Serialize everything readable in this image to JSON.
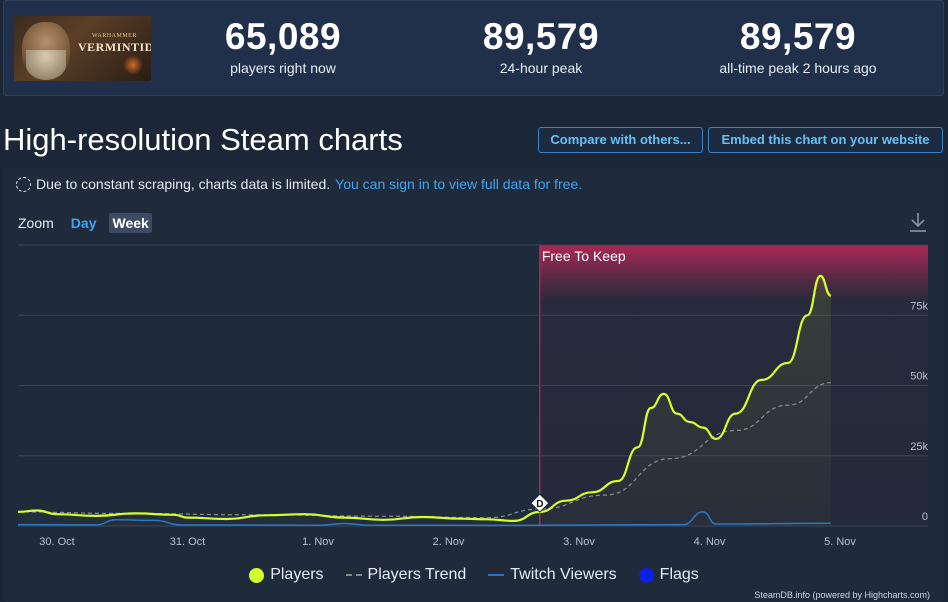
{
  "game": {
    "logo_small": "WARHAMMER",
    "logo": "VERMINTIDE"
  },
  "stats": [
    {
      "value": "65,089",
      "label": "players right now"
    },
    {
      "value": "89,579",
      "label": "24-hour peak"
    },
    {
      "value": "89,579",
      "label": "all-time peak 2 hours ago"
    }
  ],
  "heading": "High-resolution Steam charts",
  "buttons": {
    "compare": "Compare with others...",
    "embed": "Embed this chart on your website"
  },
  "notice": {
    "text": "Due to constant scraping, charts data is limited.",
    "link": "You can sign in to view full data for free."
  },
  "zoom": {
    "label": "Zoom",
    "day": "Day",
    "week": "Week",
    "active": "Week"
  },
  "colors": {
    "players": "#d4ff2a",
    "trend": "#8a8f96",
    "twitch": "#2a74c4",
    "flags": "#0b20e6",
    "band": "#c4285a",
    "link": "#3ea6f0"
  },
  "chart_data": {
    "type": "line",
    "x_ticks": [
      "30. Oct",
      "31. Oct",
      "1. Nov",
      "2. Nov",
      "3. Nov",
      "4. Nov",
      "5. Nov"
    ],
    "y_ticks": [
      "0",
      "25k",
      "50k",
      "75k"
    ],
    "ylim": [
      0,
      100000
    ],
    "plot_band": {
      "label": "Free To Keep",
      "from": 3.7,
      "to": 6.7
    },
    "flag": {
      "x": 3.7,
      "y": 11000,
      "label": "D"
    },
    "series": [
      {
        "name": "Players",
        "color": "#d4ff2a",
        "points": [
          [
            -0.3,
            5000
          ],
          [
            -0.15,
            5500
          ],
          [
            0,
            4200
          ],
          [
            0.3,
            3600
          ],
          [
            0.6,
            4500
          ],
          [
            0.9,
            4000
          ],
          [
            1.0,
            3000
          ],
          [
            1.3,
            2500
          ],
          [
            1.6,
            3800
          ],
          [
            1.9,
            4200
          ],
          [
            2.2,
            3000
          ],
          [
            2.5,
            2200
          ],
          [
            2.8,
            3200
          ],
          [
            3.1,
            2600
          ],
          [
            3.3,
            2400
          ],
          [
            3.5,
            1800
          ],
          [
            3.7,
            5000
          ],
          [
            3.9,
            9000
          ],
          [
            4.1,
            12000
          ],
          [
            4.3,
            16000
          ],
          [
            4.45,
            28000
          ],
          [
            4.55,
            42000
          ],
          [
            4.65,
            47000
          ],
          [
            4.75,
            40000
          ],
          [
            4.85,
            37000
          ],
          [
            4.95,
            35000
          ],
          [
            5.05,
            31000
          ],
          [
            5.2,
            40000
          ],
          [
            5.4,
            52000
          ],
          [
            5.6,
            58000
          ],
          [
            5.75,
            75000
          ],
          [
            5.85,
            89000
          ],
          [
            5.93,
            82000
          ]
        ]
      },
      {
        "name": "Players Trend",
        "color": "#8a8f96",
        "points": [
          [
            -0.3,
            5000
          ],
          [
            0.5,
            4500
          ],
          [
            1.5,
            4000
          ],
          [
            2.5,
            3500
          ],
          [
            3.3,
            3000
          ],
          [
            3.7,
            6000
          ],
          [
            4.2,
            11000
          ],
          [
            4.7,
            24000
          ],
          [
            5.2,
            34000
          ],
          [
            5.6,
            43000
          ],
          [
            5.93,
            51000
          ]
        ]
      },
      {
        "name": "Twitch Viewers",
        "color": "#2a74c4",
        "points": [
          [
            -0.3,
            500
          ],
          [
            0.3,
            400
          ],
          [
            0.45,
            2200
          ],
          [
            0.75,
            2000
          ],
          [
            0.95,
            400
          ],
          [
            2.0,
            300
          ],
          [
            2.2,
            900
          ],
          [
            2.4,
            300
          ],
          [
            3.5,
            200
          ],
          [
            4.2,
            400
          ],
          [
            4.8,
            500
          ],
          [
            4.95,
            5000
          ],
          [
            5.05,
            700
          ],
          [
            5.93,
            1000
          ]
        ]
      },
      {
        "name": "Flags",
        "color": "#0b20e6",
        "points": []
      }
    ]
  },
  "credits": "SteamDB.info (powered by Highcharts.com)"
}
